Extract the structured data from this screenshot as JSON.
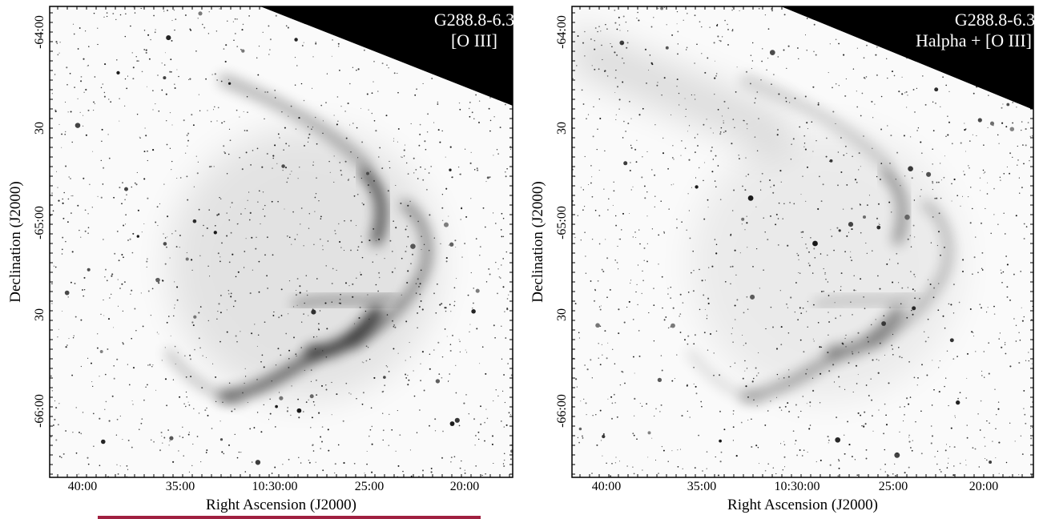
{
  "panels": [
    {
      "title": [
        "G288.8-6.3",
        "[O III]"
      ],
      "y_ticks": [
        "-64:00",
        "30",
        "-65:00",
        "30",
        "-66:00"
      ],
      "x_ticks": [
        "40:00",
        "35:00",
        "10:30:00",
        "25:00",
        "20:00"
      ],
      "x_label": "Right Ascension (J2000)",
      "y_label": "Declination (J2000)"
    },
    {
      "title": [
        "G288.8-6.3",
        "Halpha + [O III]"
      ],
      "y_ticks": [
        "-64:00",
        "30",
        "-65:00",
        "30",
        "-66:00"
      ],
      "x_ticks": [
        "40:00",
        "35:00",
        "10:30:00",
        "25:00",
        "20:00"
      ],
      "x_label": "Right Ascension (J2000)",
      "y_label": "Declination (J2000)"
    }
  ]
}
